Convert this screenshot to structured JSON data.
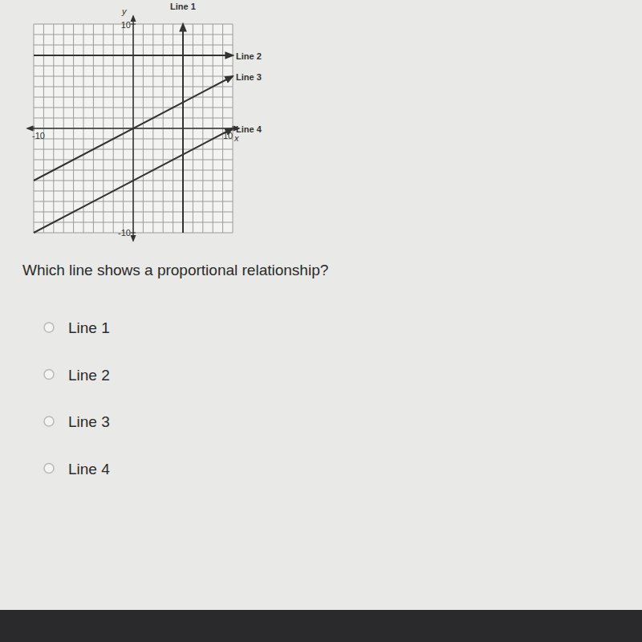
{
  "chart_data": {
    "type": "line",
    "xlim": [
      -10,
      10
    ],
    "ylim": [
      -10,
      10
    ],
    "xticks": [
      -10,
      10
    ],
    "yticks": [
      -10,
      10
    ],
    "x_label": "x",
    "y_label": "y",
    "grid": true,
    "series": [
      {
        "name": "Line 1",
        "color": "#333333",
        "x": [
          5,
          5
        ],
        "values": [
          -10,
          10
        ]
      },
      {
        "name": "Line 2",
        "color": "#333333",
        "x": [
          -10,
          10
        ],
        "values": [
          7,
          7
        ]
      },
      {
        "name": "Line 3",
        "color": "#333333",
        "x": [
          -10,
          10
        ],
        "values": [
          -5,
          5
        ]
      },
      {
        "name": "Line 4",
        "color": "#333333",
        "x": [
          -10,
          10
        ],
        "values": [
          -10,
          0
        ]
      }
    ]
  },
  "question": "Which line shows a proportional relationship?",
  "options": [
    "Line 1",
    "Line 2",
    "Line 3",
    "Line 4"
  ]
}
